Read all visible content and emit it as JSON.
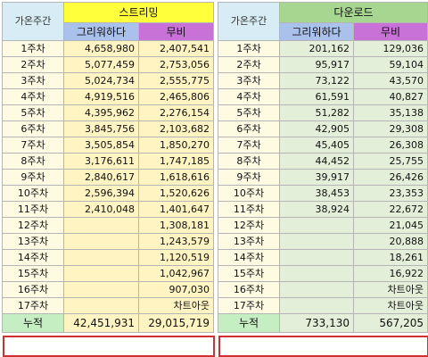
{
  "streaming": {
    "section_title": "스트리밍",
    "week_header": "가온주간",
    "col_a": "그리워하다",
    "col_b": "무비",
    "rows": [
      {
        "week": "1주차",
        "a": "4,658,980",
        "b": "2,407,541"
      },
      {
        "week": "2주차",
        "a": "5,077,459",
        "b": "2,753,056"
      },
      {
        "week": "3주차",
        "a": "5,024,734",
        "b": "2,555,775"
      },
      {
        "week": "4주차",
        "a": "4,919,516",
        "b": "2,465,806"
      },
      {
        "week": "5주차",
        "a": "4,395,962",
        "b": "2,276,154"
      },
      {
        "week": "6주차",
        "a": "3,845,756",
        "b": "2,103,682"
      },
      {
        "week": "7주차",
        "a": "3,505,854",
        "b": "1,850,270"
      },
      {
        "week": "8주차",
        "a": "3,176,611",
        "b": "1,747,185"
      },
      {
        "week": "9주차",
        "a": "2,840,617",
        "b": "1,618,616"
      },
      {
        "week": "10주차",
        "a": "2,596,394",
        "b": "1,520,626"
      },
      {
        "week": "11주차",
        "a": "2,410,048",
        "b": "1,401,647"
      },
      {
        "week": "12주차",
        "a": "",
        "b": "1,308,181"
      },
      {
        "week": "13주차",
        "a": "",
        "b": "1,243,579"
      },
      {
        "week": "14주차",
        "a": "",
        "b": "1,120,519"
      },
      {
        "week": "15주차",
        "a": "",
        "b": "1,042,967"
      },
      {
        "week": "16주차",
        "a": "",
        "b": "907,030"
      },
      {
        "week": "17주차",
        "a": "",
        "b": "차트아웃"
      }
    ],
    "total": {
      "label": "누적",
      "a": "42,451,931",
      "b": "29,015,719"
    }
  },
  "download": {
    "section_title": "다운로드",
    "week_header": "가온주간",
    "col_a": "그리워하다",
    "col_b": "무비",
    "rows": [
      {
        "week": "1주차",
        "a": "201,162",
        "b": "129,036"
      },
      {
        "week": "2주차",
        "a": "95,917",
        "b": "59,104"
      },
      {
        "week": "3주차",
        "a": "73,122",
        "b": "43,570"
      },
      {
        "week": "4주차",
        "a": "61,591",
        "b": "40,827"
      },
      {
        "week": "5주차",
        "a": "51,282",
        "b": "35,138"
      },
      {
        "week": "6주차",
        "a": "42,905",
        "b": "29,308"
      },
      {
        "week": "7주차",
        "a": "45,405",
        "b": "26,308"
      },
      {
        "week": "8주차",
        "a": "44,452",
        "b": "25,755"
      },
      {
        "week": "9주차",
        "a": "39,917",
        "b": "26,426"
      },
      {
        "week": "10주차",
        "a": "38,453",
        "b": "23,353"
      },
      {
        "week": "11주차",
        "a": "38,924",
        "b": "22,672"
      },
      {
        "week": "12주차",
        "a": "",
        "b": "21,045"
      },
      {
        "week": "13주차",
        "a": "",
        "b": "20,888"
      },
      {
        "week": "14주차",
        "a": "",
        "b": "18,261"
      },
      {
        "week": "15주차",
        "a": "",
        "b": "16,922"
      },
      {
        "week": "16주차",
        "a": "",
        "b": "차트아웃"
      },
      {
        "week": "17주차",
        "a": "",
        "b": "차트아웃"
      }
    ],
    "total": {
      "label": "누적",
      "a": "733,130",
      "b": "567,205"
    }
  },
  "colors": {
    "streaming_header": "#ffff3c",
    "download_header": "#a7d690",
    "col_a_header": "#a9c1eb",
    "col_b_header": "#c872d8",
    "week_header_bg": "#d7ecf5",
    "total_row_bg": "#c6eec3",
    "total_outline": "#d03030"
  }
}
